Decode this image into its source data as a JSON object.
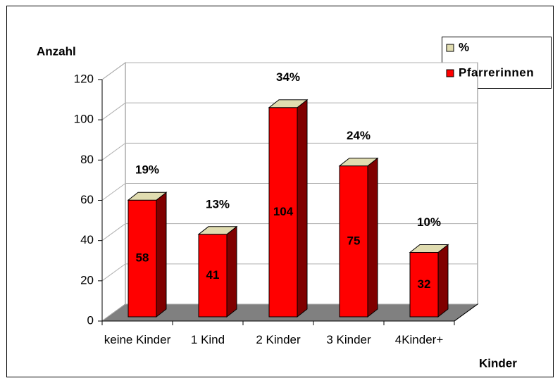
{
  "chart_data": {
    "type": "bar3d",
    "y_axis_label": "Anzahl",
    "x_axis_label": "Kinder",
    "categories": [
      "keine Kinder",
      "1 Kind",
      "2 Kinder",
      "3 Kinder",
      "4Kinder+"
    ],
    "series": [
      {
        "name": "%",
        "color": "#e0dcb0",
        "values": [
          19,
          13,
          34,
          24,
          10
        ],
        "value_labels": [
          "19%",
          "13%",
          "34%",
          "24%",
          "10%"
        ]
      },
      {
        "name": "Pfarrerinnen",
        "color": "#ff0000",
        "values": [
          58,
          41,
          104,
          75,
          32
        ]
      }
    ],
    "ylim": [
      0,
      120
    ],
    "yticks": [
      0,
      20,
      40,
      60,
      80,
      100,
      120
    ],
    "grid": true,
    "legend": "top-right"
  }
}
